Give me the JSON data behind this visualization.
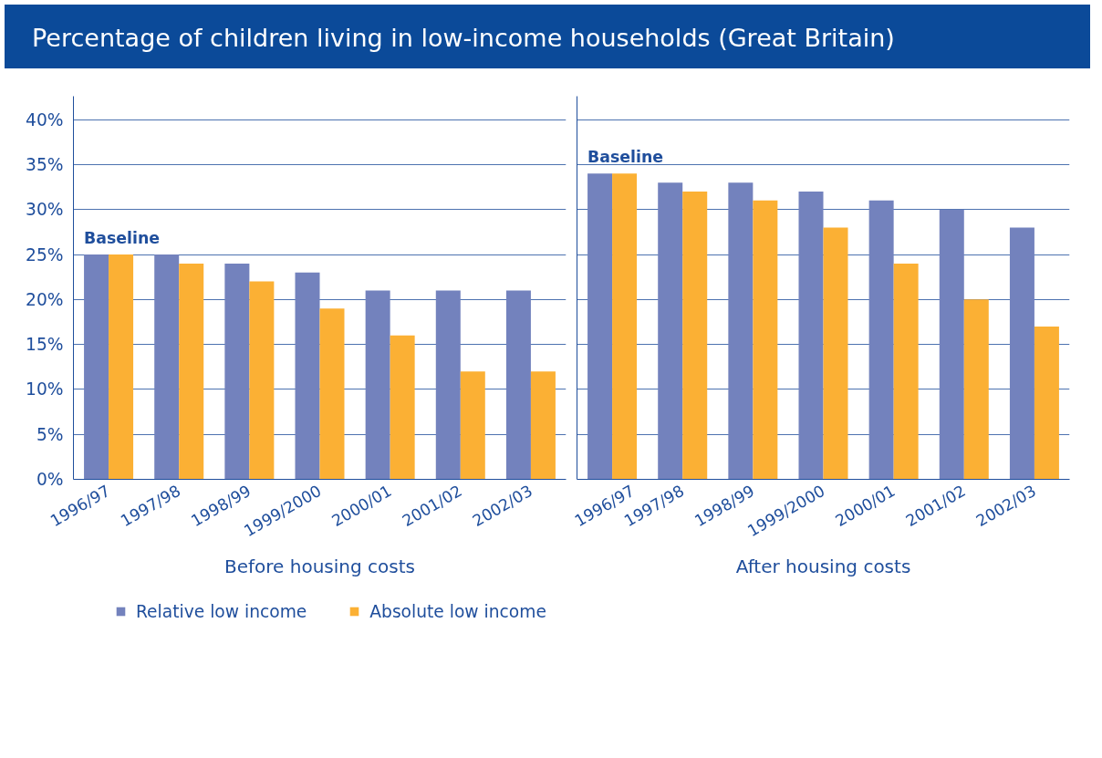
{
  "chart_data": [
    {
      "type": "bar",
      "title": "Percentage of children living in low-income households (Great Britain)",
      "xlabel": "Before housing costs",
      "categories": [
        "1996/97",
        "1997/98",
        "1998/99",
        "1999/2000",
        "2000/01",
        "2001/02",
        "2002/03"
      ],
      "series": [
        {
          "name": "Relative low income",
          "color": "#7382bd",
          "values": [
            25,
            25,
            24,
            23,
            21,
            21,
            21
          ]
        },
        {
          "name": "Absolute low income",
          "color": "#fbb034",
          "values": [
            25,
            24,
            22,
            19,
            16,
            12,
            12
          ]
        }
      ],
      "ylim": [
        0,
        42.6
      ],
      "yticks": [
        {
          "value": 0,
          "label": "0%"
        },
        {
          "value": 5,
          "label": "5%"
        },
        {
          "value": 10,
          "label": "10%"
        },
        {
          "value": 15,
          "label": "15%"
        },
        {
          "value": 20,
          "label": "20%"
        },
        {
          "value": 25,
          "label": "25%"
        },
        {
          "value": 30,
          "label": "30%"
        },
        {
          "value": 35,
          "label": "35%"
        },
        {
          "value": 40,
          "label": "40%"
        }
      ],
      "grid": "y",
      "legend": "bottom",
      "annotations": [
        {
          "text": "Baseline",
          "x": "1996/97",
          "y": 25
        }
      ]
    },
    {
      "type": "bar",
      "xlabel": "After housing costs",
      "categories": [
        "1996/97",
        "1997/98",
        "1998/99",
        "1999/2000",
        "2000/01",
        "2001/02",
        "2002/03"
      ],
      "series": [
        {
          "color": "#7382bd",
          "values": [
            34,
            33,
            33,
            32,
            31,
            30,
            28
          ]
        },
        {
          "color": "#fbb034",
          "values": [
            34,
            32,
            31,
            28,
            24,
            20,
            17
          ]
        }
      ],
      "ylim": [
        0,
        42.6
      ],
      "yticks": [
        0,
        5,
        10,
        15,
        20,
        25,
        30,
        35,
        40
      ],
      "grid": "y",
      "tick_labels": "x",
      "annotations": [
        {
          "text": "Baseline",
          "x": "1996/97",
          "y": 34
        }
      ]
    }
  ]
}
